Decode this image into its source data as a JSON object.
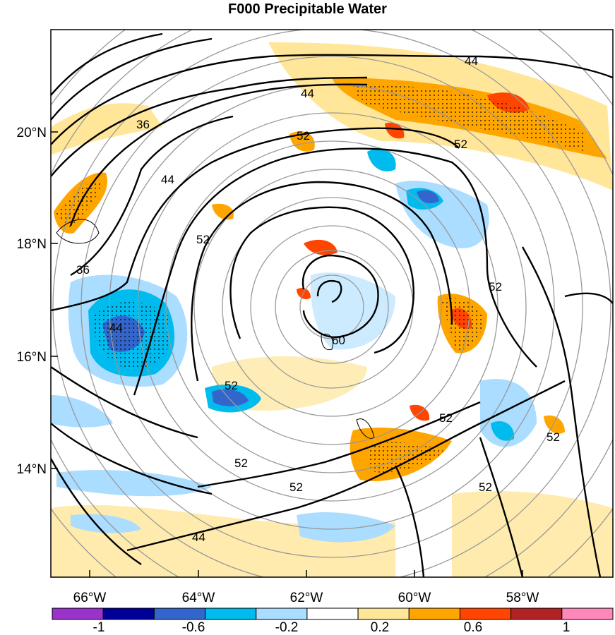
{
  "title": "F000 Precipitable Water",
  "map": {
    "lat_labels": [
      "20°N",
      "18°N",
      "16°N",
      "14°N"
    ],
    "lon_labels": [
      "66°W",
      "64°W",
      "62°W",
      "60°W",
      "58°W"
    ]
  },
  "contours": {
    "color": "#000000",
    "labels": [
      "44",
      "44",
      "36",
      "44",
      "52",
      "52",
      "52",
      "44",
      "52",
      "60",
      "52",
      "52",
      "52",
      "52",
      "52",
      "52",
      "44",
      "36"
    ]
  },
  "colorbar": {
    "colors": [
      "#9933cc",
      "#000099",
      "#3366cc",
      "#00bbee",
      "#aaddff",
      "#ffffff",
      "#ffe699",
      "#ffa500",
      "#ff4500",
      "#b22222",
      "#ff88bb"
    ],
    "tick_labels": [
      "-1",
      "-0.6",
      "-0.2",
      "0.2",
      "0.6",
      "1"
    ]
  }
}
